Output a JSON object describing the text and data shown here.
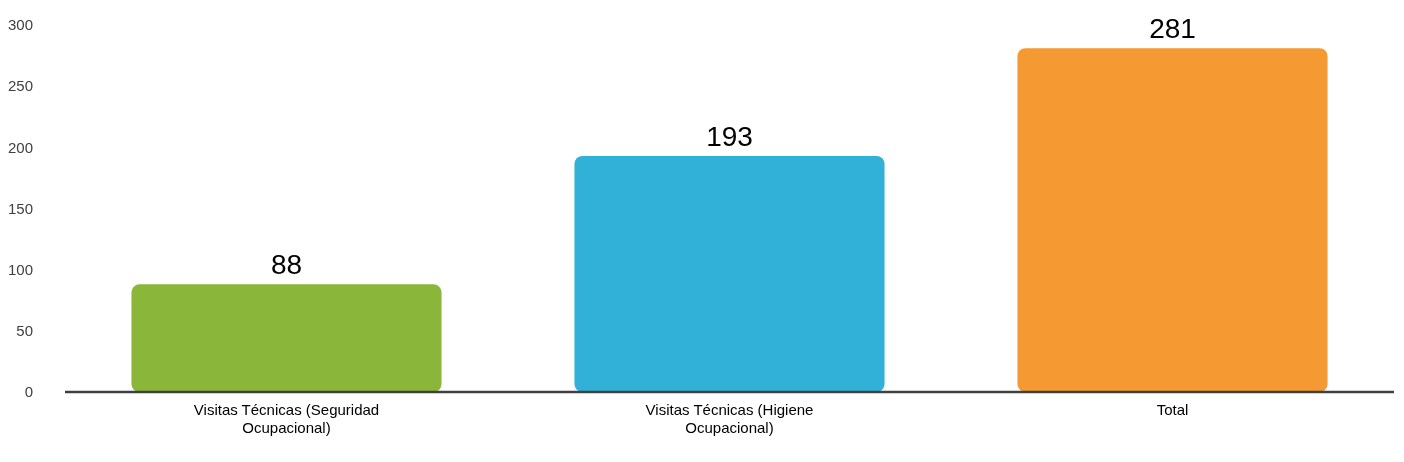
{
  "chart_data": {
    "type": "bar",
    "categories": [
      "Visitas Técnicas (Seguridad Ocupacional)",
      "Visitas Técnicas (Higiene Ocupacional)",
      "Total"
    ],
    "values": [
      88,
      193,
      281
    ],
    "colors": [
      "#8ab73a",
      "#31b0d8",
      "#f59a32"
    ],
    "ylim": [
      0,
      300
    ],
    "yticks": [
      0,
      50,
      100,
      150,
      200,
      250,
      300
    ],
    "data_labels": true,
    "grid": false
  }
}
